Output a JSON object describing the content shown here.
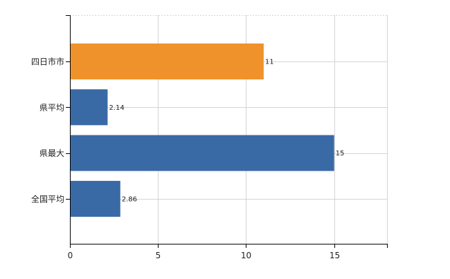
{
  "chart_data": {
    "type": "bar",
    "orientation": "horizontal",
    "categories": [
      "四日市市",
      "県平均",
      "県最大",
      "全国平均"
    ],
    "values": [
      11,
      2.14,
      15,
      2.86
    ],
    "value_labels": [
      "11",
      "2.14",
      "15",
      "2.86"
    ],
    "bar_colors": [
      "#f0922b",
      "#3a6aa5",
      "#3a6aa5",
      "#3a6aa5"
    ],
    "xlim": [
      0,
      18
    ],
    "x_ticks": [
      0,
      5,
      10,
      15
    ],
    "x_tick_labels": [
      "0",
      "5",
      "10",
      "15"
    ],
    "grid": true,
    "legend": "none",
    "title": "",
    "xlabel": "",
    "ylabel": ""
  },
  "colors": {
    "highlight": "#f0922b",
    "primary": "#3a6aa5",
    "grid": "#d4d4d4",
    "axis": "#000000"
  }
}
